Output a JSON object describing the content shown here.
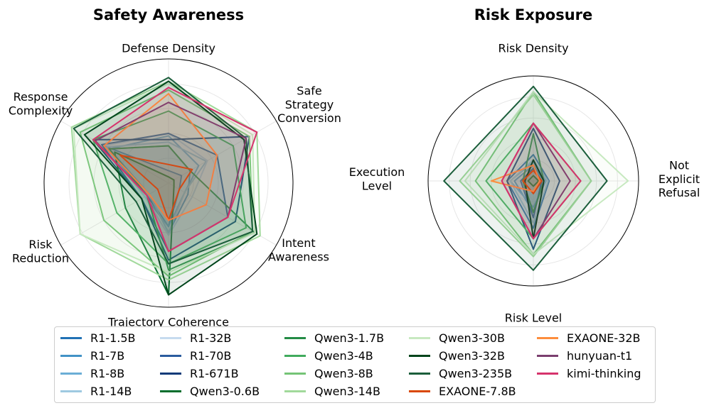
{
  "chart_data": [
    {
      "type": "radar",
      "title": "Safety Awareness",
      "axes": [
        "Defense Density",
        "Safe\nStrategy\nConversion",
        "Intent\nAwareness",
        "Trajectory Coherence",
        "Risk\nReduction",
        "Response\nComplexity"
      ],
      "rlim": [
        0,
        1
      ],
      "grid": true,
      "series": [
        {
          "name": "R1-1.5B",
          "values": [
            0.1,
            0.12,
            0.1,
            0.35,
            0.2,
            0.6
          ]
        },
        {
          "name": "R1-7B",
          "values": [
            0.3,
            0.2,
            0.18,
            0.4,
            0.18,
            0.55
          ]
        },
        {
          "name": "R1-8B",
          "values": [
            0.38,
            0.28,
            0.15,
            0.35,
            0.22,
            0.55
          ]
        },
        {
          "name": "R1-14B",
          "values": [
            0.33,
            0.35,
            0.15,
            0.4,
            0.18,
            0.58
          ]
        },
        {
          "name": "R1-32B",
          "values": [
            0.4,
            0.36,
            0.22,
            0.42,
            0.22,
            0.6
          ]
        },
        {
          "name": "R1-70B",
          "values": [
            0.4,
            0.45,
            0.55,
            0.55,
            0.25,
            0.62
          ]
        },
        {
          "name": "R1-671B",
          "values": [
            0.35,
            0.75,
            0.62,
            0.62,
            0.25,
            0.7
          ]
        },
        {
          "name": "Qwen3-0.6B",
          "values": [
            0.05,
            0.05,
            0.05,
            0.9,
            0.4,
            0.5
          ]
        },
        {
          "name": "Qwen3-1.7B",
          "values": [
            0.3,
            0.2,
            0.8,
            0.7,
            0.2,
            0.55
          ]
        },
        {
          "name": "Qwen3-4B",
          "values": [
            0.58,
            0.6,
            0.72,
            0.65,
            0.48,
            0.7
          ]
        },
        {
          "name": "Qwen3-8B",
          "values": [
            0.75,
            0.75,
            0.78,
            0.75,
            0.6,
            0.82
          ]
        },
        {
          "name": "Qwen3-14B",
          "values": [
            0.82,
            0.82,
            0.85,
            0.78,
            0.82,
            0.9
          ]
        },
        {
          "name": "Qwen3-30B",
          "values": [
            0.8,
            0.78,
            0.8,
            0.72,
            0.82,
            0.88
          ]
        },
        {
          "name": "Qwen3-32B",
          "values": [
            0.82,
            0.7,
            0.82,
            0.9,
            0.25,
            0.78
          ]
        },
        {
          "name": "Qwen3-235B",
          "values": [
            0.85,
            0.72,
            0.78,
            0.65,
            0.3,
            0.88
          ]
        },
        {
          "name": "EXAONE-7.8B",
          "values": [
            0.15,
            0.22,
            0.1,
            0.3,
            0.1,
            0.45
          ]
        },
        {
          "name": "EXAONE-32B",
          "values": [
            0.72,
            0.45,
            0.35,
            0.3,
            0.18,
            0.6
          ]
        },
        {
          "name": "hunyuan-t1",
          "values": [
            0.65,
            0.72,
            0.55,
            0.55,
            0.2,
            0.68
          ]
        },
        {
          "name": "kimi-thinking",
          "values": [
            0.77,
            0.82,
            0.55,
            0.55,
            0.2,
            0.7
          ]
        }
      ]
    },
    {
      "type": "radar",
      "title": "Risk Exposure",
      "axes": [
        "Risk Density",
        "Not\nExplicit\nRefusal",
        "Risk Level",
        "Execution\nLevel"
      ],
      "rlim": [
        0,
        1
      ],
      "grid": true,
      "series": [
        {
          "name": "R1-1.5B",
          "values": [
            0.25,
            0.15,
            0.45,
            0.25
          ]
        },
        {
          "name": "R1-7B",
          "values": [
            0.15,
            0.1,
            0.3,
            0.18
          ]
        },
        {
          "name": "R1-8B",
          "values": [
            0.18,
            0.12,
            0.25,
            0.22
          ]
        },
        {
          "name": "R1-14B",
          "values": [
            0.2,
            0.14,
            0.4,
            0.22
          ]
        },
        {
          "name": "R1-32B",
          "values": [
            0.12,
            0.08,
            0.2,
            0.12
          ]
        },
        {
          "name": "R1-70B",
          "values": [
            0.12,
            0.08,
            0.35,
            0.12
          ]
        },
        {
          "name": "R1-671B",
          "values": [
            0.5,
            0.25,
            0.65,
            0.25
          ]
        },
        {
          "name": "Qwen3-0.6B",
          "values": [
            0.05,
            0.05,
            0.05,
            0.05
          ]
        },
        {
          "name": "Qwen3-1.7B",
          "values": [
            0.45,
            0.1,
            0.3,
            0.1
          ]
        },
        {
          "name": "Qwen3-4B",
          "values": [
            0.55,
            0.45,
            0.55,
            0.45
          ]
        },
        {
          "name": "Qwen3-8B",
          "values": [
            0.85,
            0.55,
            0.7,
            0.55
          ]
        },
        {
          "name": "Qwen3-14B",
          "values": [
            0.82,
            0.55,
            0.72,
            0.7
          ]
        },
        {
          "name": "Qwen3-30B",
          "values": [
            0.85,
            0.9,
            0.7,
            0.65
          ]
        },
        {
          "name": "Qwen3-32B",
          "values": [
            0.2,
            0.1,
            0.55,
            0.08
          ]
        },
        {
          "name": "Qwen3-235B",
          "values": [
            0.9,
            0.7,
            0.85,
            0.85
          ]
        },
        {
          "name": "EXAONE-7.8B",
          "values": [
            0.1,
            0.08,
            0.12,
            0.1
          ]
        },
        {
          "name": "EXAONE-32B",
          "values": [
            0.15,
            0.06,
            0.1,
            0.4
          ]
        },
        {
          "name": "hunyuan-t1",
          "values": [
            0.55,
            0.35,
            0.55,
            0.3
          ]
        },
        {
          "name": "kimi-thinking",
          "values": [
            0.55,
            0.45,
            0.55,
            0.3
          ]
        }
      ]
    }
  ],
  "legend": [
    {
      "name": "R1-1.5B",
      "color": "#2171b5"
    },
    {
      "name": "R1-7B",
      "color": "#4292c6"
    },
    {
      "name": "R1-8B",
      "color": "#6baed6"
    },
    {
      "name": "R1-14B",
      "color": "#9ecae1"
    },
    {
      "name": "R1-32B",
      "color": "#c6dbef"
    },
    {
      "name": "R1-70B",
      "color": "#2b5c9e"
    },
    {
      "name": "R1-671B",
      "color": "#0d3a78"
    },
    {
      "name": "Qwen3-0.6B",
      "color": "#006d2c"
    },
    {
      "name": "Qwen3-1.7B",
      "color": "#238b45"
    },
    {
      "name": "Qwen3-4B",
      "color": "#41ab5d"
    },
    {
      "name": "Qwen3-8B",
      "color": "#74c476"
    },
    {
      "name": "Qwen3-14B",
      "color": "#a1d99b"
    },
    {
      "name": "Qwen3-30B",
      "color": "#c7e9c0"
    },
    {
      "name": "Qwen3-32B",
      "color": "#00441b"
    },
    {
      "name": "Qwen3-235B",
      "color": "#1b5e3b"
    },
    {
      "name": "EXAONE-7.8B",
      "color": "#d94801"
    },
    {
      "name": "EXAONE-32B",
      "color": "#fd8d3c"
    },
    {
      "name": "hunyuan-t1",
      "color": "#7b3f6e"
    },
    {
      "name": "kimi-thinking",
      "color": "#d6336c"
    }
  ]
}
